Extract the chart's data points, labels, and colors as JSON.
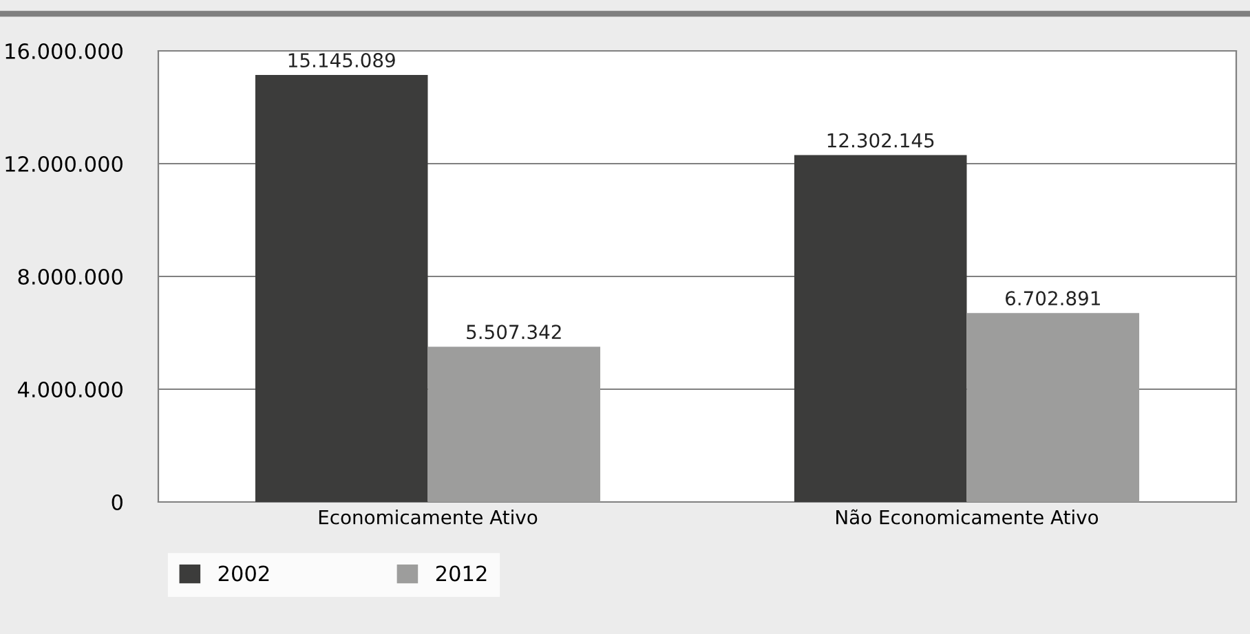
{
  "chart_data": {
    "type": "bar",
    "categories": [
      "Economicamente Ativo",
      "Não Economicamente Ativo"
    ],
    "series": [
      {
        "name": "2002",
        "color": "#3c3c3b",
        "values": [
          15145089,
          12302145
        ],
        "value_labels": [
          "15.145.089",
          "12.302.145"
        ]
      },
      {
        "name": "2012",
        "color": "#9d9d9c",
        "values": [
          5507342,
          6702891
        ],
        "value_labels": [
          "5.507.342",
          "6.702.891"
        ]
      }
    ],
    "ylim": [
      0,
      16000000
    ],
    "yticks": [
      {
        "value": 0,
        "label": "0"
      },
      {
        "value": 4000000,
        "label": "4.000.000"
      },
      {
        "value": 8000000,
        "label": "8.000.000"
      },
      {
        "value": 12000000,
        "label": "12.000.000"
      },
      {
        "value": 16000000,
        "label": "16.000.000"
      }
    ],
    "grid": "y",
    "legend": "bottom"
  }
}
